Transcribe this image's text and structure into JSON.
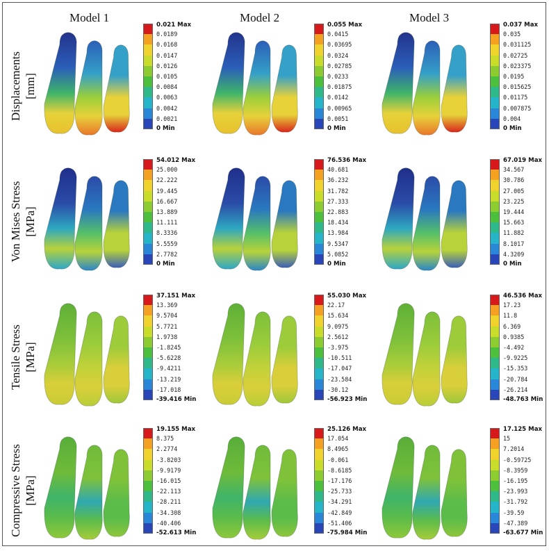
{
  "columns": [
    "Model 1",
    "Model 2",
    "Model 3"
  ],
  "rows": [
    {
      "label_line1": "Displacements",
      "label_line2": "[mm]"
    },
    {
      "label_line1": "Von Mises Stress",
      "label_line2": "[MPa]"
    },
    {
      "label_line1": "Tensile Stress",
      "label_line2": "[MPa]"
    },
    {
      "label_line1": "Compressive Stress",
      "label_line2": "[MPa]"
    }
  ],
  "legend_colors": [
    "#d7191c",
    "#f4a020",
    "#f0d22c",
    "#c9dc2a",
    "#8ccc30",
    "#4cbf3c",
    "#2fb88a",
    "#26b4c8",
    "#2a86d6",
    "#2846b8"
  ],
  "legends": [
    [
      {
        "max": "0.021 Max",
        "values": [
          "0.0189",
          "0.0168",
          "0.0147",
          "0.0126",
          "0.0105",
          "0.0084",
          "0.0063",
          "0.0042",
          "0.0021"
        ],
        "min": "0 Min"
      },
      {
        "max": "0.055 Max",
        "values": [
          "0.0415",
          "0.03695",
          "0.0324",
          "0.02785",
          "0.0233",
          "0.01875",
          "0.0142",
          "0.00965",
          "0.0051"
        ],
        "min": "0 Min"
      },
      {
        "max": "0.037 Max",
        "values": [
          "0.035",
          "0.031125",
          "0.02725",
          "0.023375",
          "0.0195",
          "0.015625",
          "0.01175",
          "0.007875",
          "0.004"
        ],
        "min": "0 Min"
      }
    ],
    [
      {
        "max": "54.012 Max",
        "values": [
          "25.000",
          "22.222",
          "19.445",
          "16.667",
          "13.889",
          "11.111",
          "8.3336",
          "5.5559",
          "2.7782"
        ],
        "min": "0 Min"
      },
      {
        "max": "76.536 Max",
        "values": [
          "40.681",
          "36.232",
          "31.782",
          "27.333",
          "22.883",
          "18.434",
          "13.984",
          "9.5347",
          "5.0852"
        ],
        "min": "0 Min"
      },
      {
        "max": "67.019 Max",
        "values": [
          "34.567",
          "30.786",
          "27.005",
          "23.225",
          "19.444",
          "15.663",
          "11.882",
          "8.1017",
          "4.3209"
        ],
        "min": "0 Min"
      }
    ],
    [
      {
        "max": "37.151 Max",
        "values": [
          "13.369",
          "9.5704",
          "5.7721",
          "1.9738",
          "-1.8245",
          "-5.6228",
          "-9.4211",
          "-13.219",
          "-17.018"
        ],
        "min": "-39.416 Min"
      },
      {
        "max": "55.030 Max",
        "values": [
          "22.17",
          "15.634",
          "9.0975",
          "2.5612",
          "-3.975",
          "-10.511",
          "-17.047",
          "-23.584",
          "-30.12"
        ],
        "min": "-56.923 Min"
      },
      {
        "max": "46.536 Max",
        "values": [
          "17.23",
          "11.8",
          "6.369",
          "0.9385",
          "-4.492",
          "-9.9225",
          "-15.353",
          "-20.784",
          "-26.214"
        ],
        "min": "-48.763 Min"
      }
    ],
    [
      {
        "max": "19.155 Max",
        "values": [
          "8.375",
          "2.2774",
          "-3.8203",
          "-9.9179",
          "-16.015",
          "-22.113",
          "-28.211",
          "-34.308",
          "-40.406"
        ],
        "min": "-52.613 Min"
      },
      {
        "max": "25.126 Max",
        "values": [
          "17.054",
          "8.4965",
          "-0.061",
          "-8.6185",
          "-17.176",
          "-25.733",
          "-34.291",
          "-42.849",
          "-51.406"
        ],
        "min": "-75.984 Min"
      },
      {
        "max": "17.125 Max",
        "values": [
          "15",
          "7.2014",
          "-0.59725",
          "-8.3959",
          "-16.195",
          "-23.993",
          "-31.792",
          "-39.59",
          "-47.389"
        ],
        "min": "-63.677 Min"
      }
    ]
  ]
}
